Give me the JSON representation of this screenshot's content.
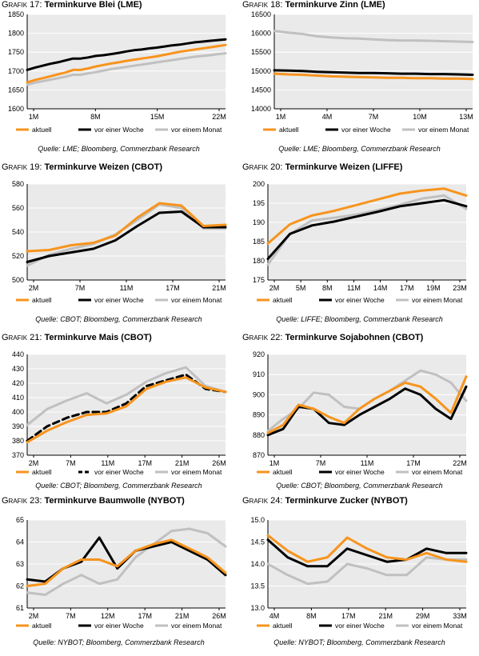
{
  "colors": {
    "aktuell": "#F7941D",
    "vor_einer_woche": "#000000",
    "vor_einem_monat": "#C0C0C0",
    "plot_bg": "#EAEAEA"
  },
  "chart_data": [
    {
      "id": "17",
      "title_prefix": "Grafik 17: ",
      "title_main": "Terminkurve Blei (LME)",
      "source": "Quelle: LME; Bloomberg, Commerzbank Research",
      "type": "line",
      "x_tick_labels": [
        "1M",
        "8M",
        "15M",
        "22M"
      ],
      "ylim": [
        1600,
        1850
      ],
      "y_ticks": [
        1600,
        1650,
        1700,
        1750,
        1800,
        1850
      ],
      "legend": [
        "aktuell",
        "vor einer Woche",
        "vor einem Monat"
      ],
      "series": [
        {
          "name": "aktuell",
          "values": [
            1670,
            1676,
            1681,
            1686,
            1691,
            1696,
            1703,
            1703,
            1707,
            1712,
            1716,
            1720,
            1723,
            1727,
            1730,
            1733,
            1736,
            1739,
            1743,
            1747,
            1751,
            1754,
            1757,
            1760,
            1763,
            1766,
            1769
          ]
        },
        {
          "name": "vor einer Woche",
          "values": [
            1703,
            1709,
            1714,
            1719,
            1723,
            1728,
            1733,
            1733,
            1736,
            1740,
            1742,
            1745,
            1748,
            1752,
            1755,
            1757,
            1760,
            1762,
            1765,
            1768,
            1770,
            1773,
            1776,
            1778,
            1780,
            1782,
            1784
          ]
        },
        {
          "name": "vor einem Monat",
          "values": [
            1664,
            1669,
            1673,
            1677,
            1681,
            1685,
            1690,
            1690,
            1694,
            1697,
            1701,
            1705,
            1708,
            1711,
            1714,
            1717,
            1720,
            1723,
            1726,
            1729,
            1732,
            1735,
            1738,
            1740,
            1742,
            1745,
            1747
          ]
        }
      ]
    },
    {
      "id": "18",
      "title_prefix": "Grafik 18: ",
      "title_main": "Terminkurve Zinn (LME)",
      "source": "Quelle: LME; Bloomberg, Commerzbank Research",
      "type": "line",
      "x_tick_labels": [
        "1M",
        "4M",
        "7M",
        "10M",
        "13M"
      ],
      "ylim": [
        14000,
        16500
      ],
      "y_ticks": [
        14000,
        14500,
        15000,
        15500,
        16000,
        16500
      ],
      "legend": [
        "aktuell",
        "vor einer Woche",
        "vor einem Monat"
      ],
      "series": [
        {
          "name": "aktuell",
          "values": [
            14930,
            14910,
            14900,
            14880,
            14860,
            14850,
            14840,
            14830,
            14820,
            14820,
            14810,
            14810,
            14800,
            14800,
            14790
          ]
        },
        {
          "name": "vor einer Woche",
          "values": [
            15020,
            15010,
            15000,
            14980,
            14970,
            14960,
            14950,
            14950,
            14940,
            14930,
            14930,
            14920,
            14920,
            14910,
            14900
          ]
        },
        {
          "name": "vor einem Monat",
          "values": [
            16060,
            16020,
            15980,
            15920,
            15890,
            15870,
            15860,
            15840,
            15820,
            15810,
            15810,
            15800,
            15790,
            15780,
            15770
          ]
        }
      ]
    },
    {
      "id": "19",
      "title_prefix": "Grafik 19: ",
      "title_main": "Terminkurve Weizen (CBOT)",
      "source": "Quelle: CBOT; Bloomberg, Commerzbank Research",
      "type": "line",
      "x_tick_labels": [
        "2M",
        "7M",
        "11M",
        "17M",
        "21M"
      ],
      "ylim": [
        500,
        580
      ],
      "y_ticks": [
        500,
        520,
        540,
        560,
        580
      ],
      "legend": [
        "aktuell",
        "vor einer Woche",
        "vor einem Monat"
      ],
      "series": [
        {
          "name": "aktuell",
          "values": [
            524,
            525,
            529,
            531,
            537,
            552,
            564,
            562,
            545,
            546
          ]
        },
        {
          "name": "vor einer Woche",
          "values": [
            515,
            520,
            523,
            526,
            533,
            545,
            556,
            557,
            544,
            544
          ]
        },
        {
          "name": "vor einem Monat",
          "values": [
            512,
            521,
            526,
            530,
            538,
            550,
            563,
            560,
            543,
            543
          ]
        }
      ]
    },
    {
      "id": "20",
      "title_prefix": "Grafik 20: ",
      "title_main": "Terminkurve Weizen (LIFFE)",
      "source": "Quelle: LIFFE; Bloomberg, Commerzbank Research",
      "type": "line",
      "x_tick_labels": [
        "2M",
        "5M",
        "8M",
        "11M",
        "14M",
        "17M",
        "19M",
        "23M"
      ],
      "ylim": [
        175,
        200
      ],
      "y_ticks": [
        175,
        180,
        185,
        190,
        195,
        200
      ],
      "legend": [
        "aktuell",
        "vor einer Woche",
        "vor einem Monat"
      ],
      "series": [
        {
          "name": "aktuell",
          "values": [
            184.5,
            189.5,
            191.8,
            193.0,
            194.5,
            196.0,
            197.5,
            198.3,
            198.8,
            197.0
          ]
        },
        {
          "name": "vor einer Woche",
          "values": [
            180.5,
            187.0,
            189.2,
            190.2,
            191.5,
            192.8,
            194.2,
            195.0,
            195.8,
            194.2
          ]
        },
        {
          "name": "vor einem Monat",
          "values": [
            179.0,
            187.0,
            190.5,
            191.2,
            192.0,
            193.2,
            194.6,
            196.2,
            197.0,
            193.5
          ]
        }
      ]
    },
    {
      "id": "21",
      "title_prefix": "Grafik 21: ",
      "title_main": "Terminkurve Mais (CBOT)",
      "source": "Quelle: CBOT; Bloomberg, Commerzbank Research",
      "type": "line",
      "x_tick_labels": [
        "2M",
        "7M",
        "11M",
        "17M",
        "21M",
        "26M"
      ],
      "ylim": [
        370,
        440
      ],
      "y_ticks": [
        370,
        380,
        390,
        400,
        410,
        420,
        430,
        440
      ],
      "legend": [
        "aktuell",
        "vor einer Woche",
        "vor einem Monat"
      ],
      "series": [
        {
          "name": "aktuell",
          "values": [
            379,
            387,
            393,
            398,
            399,
            404,
            416,
            421,
            424,
            417,
            414
          ]
        },
        {
          "name": "vor einer Woche",
          "values": [
            380,
            390,
            396,
            400,
            400,
            406,
            418,
            422,
            426,
            416,
            414
          ]
        },
        {
          "name": "vor einem Monat",
          "values": [
            391,
            402,
            408,
            413,
            406,
            412,
            421,
            427,
            431,
            418,
            414
          ]
        }
      ]
    },
    {
      "id": "22",
      "title_prefix": "Grafik 22: ",
      "title_main": "Terminkurve Sojabohnen (CBOT)",
      "source": "Quelle: CBOT; Bloomberg, Commerzbank Research",
      "type": "line",
      "x_tick_labels": [
        "1M",
        "7M",
        "11M",
        "17M",
        "22M"
      ],
      "ylim": [
        870,
        920
      ],
      "y_ticks": [
        870,
        880,
        890,
        900,
        910,
        920
      ],
      "legend": [
        "aktuell",
        "vor einer Woche",
        "vor einem Monat"
      ],
      "series": [
        {
          "name": "aktuell",
          "values": [
            881,
            885,
            895,
            893,
            889,
            886,
            893,
            898,
            902,
            906,
            904,
            898,
            891,
            909
          ]
        },
        {
          "name": "vor einer Woche",
          "values": [
            880,
            883,
            894,
            893,
            886,
            885,
            890,
            894,
            898,
            903,
            900,
            893,
            888,
            904
          ]
        },
        {
          "name": "vor einem Monat",
          "values": [
            882,
            888,
            893,
            901,
            900,
            894,
            893,
            898,
            902,
            907,
            912,
            910,
            906,
            897
          ]
        }
      ]
    },
    {
      "id": "23",
      "title_prefix": "Grafik 23: ",
      "title_main": "Terminkurve Baumwolle (NYBOT)",
      "source": "Quelle: NYBOT; Bloomberg, Commerzbank Research",
      "type": "line",
      "x_tick_labels": [
        "2M",
        "7M",
        "12M",
        "17M",
        "21M",
        "26M"
      ],
      "ylim": [
        61,
        65
      ],
      "y_ticks": [
        61,
        62,
        63,
        64,
        65
      ],
      "legend": [
        "aktuell",
        "vor einer Woche",
        "vor einem Monat"
      ],
      "series": [
        {
          "name": "aktuell",
          "values": [
            62.0,
            62.1,
            62.8,
            63.2,
            63.2,
            62.9,
            63.6,
            63.9,
            64.1,
            63.7,
            63.3,
            62.6
          ]
        },
        {
          "name": "vor einer Woche",
          "values": [
            62.3,
            62.2,
            62.8,
            63.1,
            64.2,
            62.8,
            63.6,
            63.8,
            64.0,
            63.6,
            63.2,
            62.5
          ]
        },
        {
          "name": "vor einem Monat",
          "values": [
            61.7,
            61.6,
            62.1,
            62.5,
            62.1,
            62.3,
            63.3,
            63.9,
            64.5,
            64.6,
            64.4,
            63.8
          ]
        }
      ]
    },
    {
      "id": "24",
      "title_prefix": "Grafik 24: ",
      "title_main": "Terminkurve Zucker (NYBOT)",
      "source": "Quelle: NYBOT; Bloomberg, Commerzbank Research",
      "type": "line",
      "x_tick_labels": [
        "4M",
        "8M",
        "17M",
        "21M",
        "29M",
        "33M"
      ],
      "ylim": [
        13.0,
        15.0
      ],
      "y_ticks": [
        13.0,
        13.5,
        14.0,
        14.5,
        15.0
      ],
      "legend": [
        "aktuell",
        "vor einer Woche",
        "vor einem Monat"
      ],
      "series": [
        {
          "name": "aktuell",
          "values": [
            14.65,
            14.3,
            14.05,
            14.15,
            14.6,
            14.35,
            14.15,
            14.1,
            14.25,
            14.1,
            14.05
          ]
        },
        {
          "name": "vor einer Woche",
          "values": [
            14.55,
            14.15,
            13.95,
            13.95,
            14.35,
            14.2,
            14.05,
            14.1,
            14.35,
            14.25,
            14.25
          ]
        },
        {
          "name": "vor einem Monat",
          "values": [
            14.0,
            13.75,
            13.55,
            13.6,
            14.0,
            13.9,
            13.75,
            13.75,
            14.15,
            14.1,
            14.1
          ]
        }
      ]
    }
  ]
}
